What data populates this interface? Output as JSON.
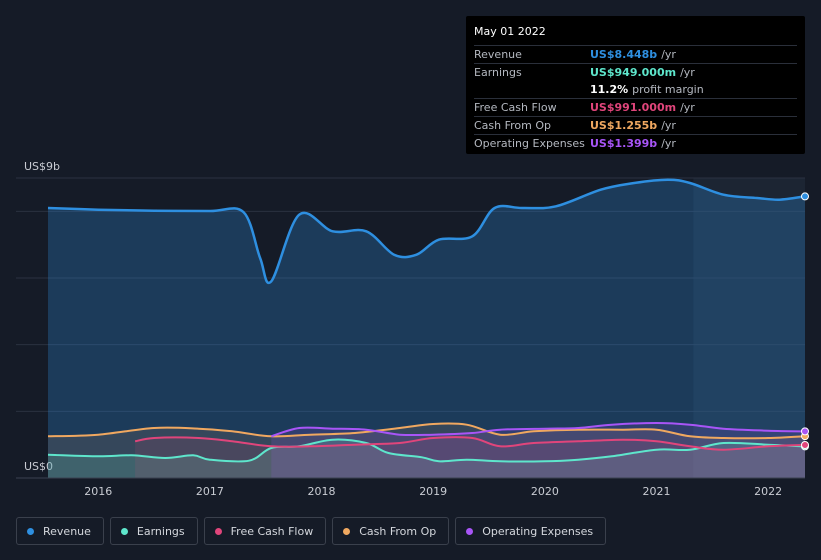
{
  "tooltip": {
    "date": "May 01 2022",
    "rows": [
      {
        "label": "Revenue",
        "value": "US$8.448b",
        "unit": "/yr",
        "color": "#2e8fe0"
      },
      {
        "label": "Earnings",
        "value": "US$949.000m",
        "unit": "/yr",
        "color": "#5ee6cc"
      },
      {
        "label": "",
        "value": "11.2%",
        "unit": "profit margin",
        "color": "#ffffff"
      },
      {
        "label": "Free Cash Flow",
        "value": "US$991.000m",
        "unit": "/yr",
        "color": "#e0457b"
      },
      {
        "label": "Cash From Op",
        "value": "US$1.255b",
        "unit": "/yr",
        "color": "#f0a860"
      },
      {
        "label": "Operating Expenses",
        "value": "US$1.399b",
        "unit": "/yr",
        "color": "#a855f7"
      }
    ]
  },
  "chart_data": {
    "type": "area",
    "ylabel_top": "US$9b",
    "ylabel_bottom": "US$0",
    "ylim": [
      0,
      9
    ],
    "xlim": [
      2015.55,
      2022.33
    ],
    "x_ticks": [
      "2016",
      "2017",
      "2018",
      "2019",
      "2020",
      "2021",
      "2022"
    ],
    "x_tick_values": [
      2016,
      2017,
      2018,
      2019,
      2020,
      2021,
      2022
    ],
    "forecast_start": 2021.33,
    "grid": true,
    "legend_position": "bottom",
    "series": [
      {
        "name": "Revenue",
        "color": "#2e8fe0",
        "x": [
          2015.55,
          2016.0,
          2016.5,
          2017.0,
          2017.3,
          2017.45,
          2017.55,
          2017.8,
          2018.1,
          2018.4,
          2018.65,
          2018.85,
          2019.05,
          2019.35,
          2019.55,
          2019.8,
          2020.1,
          2020.5,
          2020.8,
          2021.1,
          2021.3,
          2021.6,
          2021.9,
          2022.1,
          2022.33
        ],
        "y": [
          8.1,
          8.05,
          8.02,
          8.01,
          7.98,
          6.6,
          5.9,
          7.9,
          7.4,
          7.4,
          6.7,
          6.7,
          7.15,
          7.25,
          8.1,
          8.1,
          8.15,
          8.65,
          8.85,
          8.95,
          8.85,
          8.5,
          8.4,
          8.35,
          8.448
        ]
      },
      {
        "name": "Earnings",
        "color": "#5ee6cc",
        "x": [
          2015.55,
          2016.0,
          2016.3,
          2016.6,
          2016.85,
          2017.0,
          2017.35,
          2017.55,
          2017.8,
          2018.1,
          2018.4,
          2018.6,
          2018.9,
          2019.05,
          2019.3,
          2019.6,
          2020.0,
          2020.3,
          2020.6,
          2021.0,
          2021.3,
          2021.6,
          2022.0,
          2022.33
        ],
        "y": [
          0.7,
          0.65,
          0.68,
          0.6,
          0.68,
          0.55,
          0.52,
          0.9,
          0.95,
          1.15,
          1.05,
          0.75,
          0.62,
          0.5,
          0.55,
          0.5,
          0.5,
          0.55,
          0.65,
          0.85,
          0.85,
          1.05,
          1.0,
          0.949
        ]
      },
      {
        "name": "Free Cash Flow",
        "color": "#e0457b",
        "x": [
          2016.33,
          2016.5,
          2016.9,
          2017.2,
          2017.55,
          2017.9,
          2018.3,
          2018.7,
          2019.0,
          2019.35,
          2019.6,
          2019.9,
          2020.3,
          2020.7,
          2021.0,
          2021.3,
          2021.6,
          2022.0,
          2022.33
        ],
        "y": [
          1.1,
          1.2,
          1.2,
          1.1,
          0.95,
          0.95,
          1.0,
          1.05,
          1.2,
          1.2,
          0.95,
          1.05,
          1.1,
          1.15,
          1.1,
          0.95,
          0.85,
          0.95,
          0.991
        ]
      },
      {
        "name": "Cash From Op",
        "color": "#f0a860",
        "x": [
          2015.55,
          2016.0,
          2016.5,
          2016.9,
          2017.2,
          2017.55,
          2017.9,
          2018.3,
          2018.7,
          2019.0,
          2019.3,
          2019.6,
          2019.9,
          2020.3,
          2020.7,
          2021.0,
          2021.3,
          2021.6,
          2022.0,
          2022.33
        ],
        "y": [
          1.25,
          1.3,
          1.5,
          1.48,
          1.4,
          1.25,
          1.3,
          1.35,
          1.5,
          1.62,
          1.6,
          1.3,
          1.4,
          1.45,
          1.45,
          1.45,
          1.25,
          1.2,
          1.2,
          1.255
        ]
      },
      {
        "name": "Operating Expenses",
        "color": "#a855f7",
        "x": [
          2017.55,
          2017.8,
          2018.1,
          2018.4,
          2018.7,
          2019.0,
          2019.35,
          2019.6,
          2020.0,
          2020.3,
          2020.6,
          2021.0,
          2021.3,
          2021.6,
          2022.0,
          2022.33
        ],
        "y": [
          1.25,
          1.5,
          1.48,
          1.45,
          1.3,
          1.3,
          1.35,
          1.45,
          1.48,
          1.5,
          1.6,
          1.65,
          1.6,
          1.48,
          1.42,
          1.399
        ]
      }
    ]
  },
  "legend": [
    {
      "label": "Revenue",
      "color": "#2e8fe0"
    },
    {
      "label": "Earnings",
      "color": "#5ee6cc"
    },
    {
      "label": "Free Cash Flow",
      "color": "#e0457b"
    },
    {
      "label": "Cash From Op",
      "color": "#f0a860"
    },
    {
      "label": "Operating Expenses",
      "color": "#a855f7"
    }
  ]
}
